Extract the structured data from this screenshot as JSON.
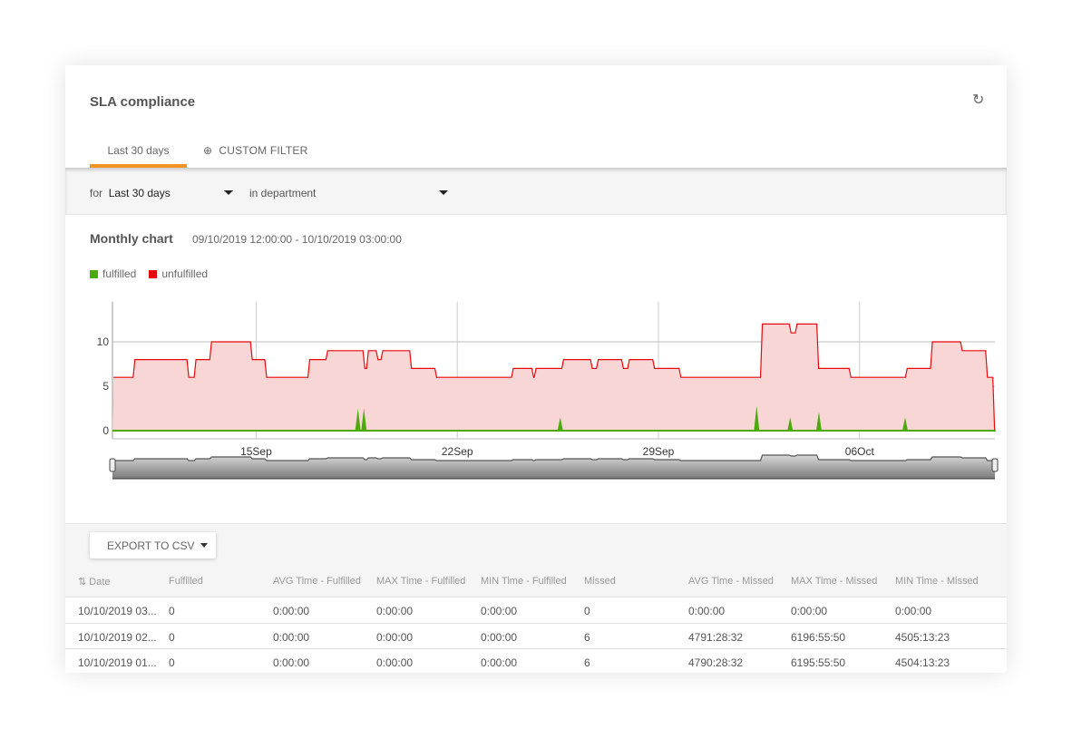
{
  "header": {
    "title": "SLA compliance",
    "refresh_icon": "refresh-icon"
  },
  "tabs": [
    {
      "label": "Last 30 days",
      "active": true
    },
    {
      "label": "CUSTOM FILTER",
      "icon": "plus-circle-icon"
    }
  ],
  "accent_color": "#f39322",
  "filters": {
    "period_prefix": "for",
    "period_value": "Last 30 days",
    "department_value": "in department"
  },
  "chart_section": {
    "title": "Monthly chart",
    "range": "09/10/2019 12:00:00 - 10/10/2019 03:00:00"
  },
  "chart_data": {
    "type": "area",
    "legend": [
      {
        "name": "fulfilled",
        "color": "#4caa0c"
      },
      {
        "name": "unfulfilled",
        "color": "#e8080a"
      }
    ],
    "legend_placement": "top-left",
    "grid": true,
    "ylim": [
      0,
      14
    ],
    "yticks": [
      0,
      5,
      10
    ],
    "xlim": [
      "2019-09-10 00:00",
      "2019-10-10 17:00"
    ],
    "xticks": [
      {
        "date": "2019-09-15 00:00",
        "label": "15Sep"
      },
      {
        "date": "2019-09-22 00:00",
        "label": "22Sep"
      },
      {
        "date": "2019-09-29 00:00",
        "label": "29Sep"
      },
      {
        "date": "2019-10-06 00:00",
        "label": "06Oct"
      }
    ],
    "series": [
      {
        "name": "unfulfilled",
        "color": "#e8080a",
        "fill": "#f9d6d6",
        "steps": [
          [
            "2019-09-10 00:00",
            6
          ],
          [
            "2019-09-10 18:00",
            8
          ],
          [
            "2019-09-12 15:00",
            6
          ],
          [
            "2019-09-12 21:00",
            8
          ],
          [
            "2019-09-13 10:00",
            10
          ],
          [
            "2019-09-14 20:00",
            8
          ],
          [
            "2019-09-15 08:00",
            6
          ],
          [
            "2019-09-16 20:00",
            8
          ],
          [
            "2019-09-17 11:00",
            9
          ],
          [
            "2019-09-18 18:00",
            7
          ],
          [
            "2019-09-18 21:00",
            9
          ],
          [
            "2019-09-19 05:00",
            8
          ],
          [
            "2019-09-19 09:00",
            9
          ],
          [
            "2019-09-20 09:00",
            7
          ],
          [
            "2019-09-21 06:00",
            6
          ],
          [
            "2019-09-23 22:00",
            7
          ],
          [
            "2019-09-24 15:00",
            6
          ],
          [
            "2019-09-24 17:00",
            7
          ],
          [
            "2019-09-25 16:00",
            8
          ],
          [
            "2019-09-26 16:00",
            7
          ],
          [
            "2019-09-26 21:00",
            8
          ],
          [
            "2019-09-27 18:00",
            7
          ],
          [
            "2019-09-27 23:00",
            8
          ],
          [
            "2019-09-28 20:00",
            7
          ],
          [
            "2019-09-29 18:00",
            6
          ],
          [
            "2019-10-02 14:00",
            12
          ],
          [
            "2019-10-03 14:00",
            11
          ],
          [
            "2019-10-03 19:00",
            12
          ],
          [
            "2019-10-04 13:00",
            7
          ],
          [
            "2019-10-05 16:00",
            6
          ],
          [
            "2019-10-07 15:00",
            7
          ],
          [
            "2019-10-08 12:00",
            10
          ],
          [
            "2019-10-09 13:00",
            9
          ],
          [
            "2019-10-10 10:00",
            6
          ],
          [
            "2019-10-10 16:00",
            0
          ],
          [
            "2019-10-10 17:00",
            0
          ]
        ]
      },
      {
        "name": "fulfilled",
        "color": "#4caa0c",
        "baseline": 0,
        "spikes": [
          [
            "2019-09-18 13:00",
            2.5
          ],
          [
            "2019-09-18 18:00",
            2.5
          ],
          [
            "2019-09-25 14:00",
            1.5
          ],
          [
            "2019-10-02 10:00",
            2.8
          ],
          [
            "2019-10-03 14:00",
            1.5
          ],
          [
            "2019-10-04 14:00",
            2.1
          ],
          [
            "2019-10-07 14:00",
            1.5
          ]
        ]
      }
    ],
    "navigator": true
  },
  "toolbar": {
    "export_label": "EXPORT TO CSV"
  },
  "table": {
    "columns": [
      "Date",
      "Fulfilled",
      "AVG Time - Fulfilled",
      "MAX Time - Fulfilled",
      "MIN Time - Fulfilled",
      "Missed",
      "AVG Time - Missed",
      "MAX Time - Missed",
      "MIN Time - Missed"
    ],
    "rows": [
      [
        "10/10/2019 03...",
        "0",
        "0:00:00",
        "0:00:00",
        "0:00:00",
        "0",
        "0:00:00",
        "0:00:00",
        "0:00:00"
      ],
      [
        "10/10/2019 02...",
        "0",
        "0:00:00",
        "0:00:00",
        "0:00:00",
        "6",
        "4791:28:32",
        "6196:55:50",
        "4505:13:23"
      ],
      [
        "10/10/2019 01...",
        "0",
        "0:00:00",
        "0:00:00",
        "0:00:00",
        "6",
        "4790:28:32",
        "6195:55:50",
        "4504:13:23"
      ]
    ]
  }
}
